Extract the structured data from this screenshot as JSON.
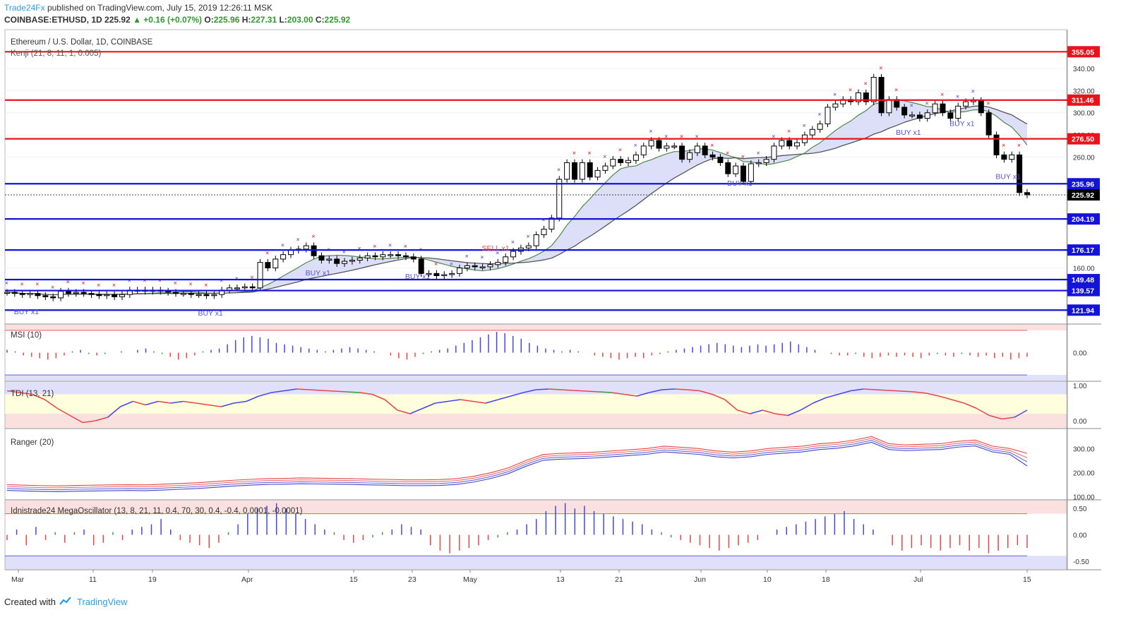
{
  "header": {
    "author": "Trade24Fx",
    "published_text": "published on TradingView.com, July 15, 2019 12:26:11 MSK",
    "symbol": "COINBASE:ETHUSD, 1D",
    "last": "225.92",
    "change": "▲ +0.16 (+0.07%)",
    "o_label": "O:",
    "o_value": "225.96",
    "h_label": "H:",
    "h_value": "227.31",
    "l_label": "L:",
    "l_value": "203.00",
    "c_label": "C:",
    "c_value": "225.92"
  },
  "footer": {
    "created_with": "Created with",
    "tradingview": "TradingView"
  },
  "colors": {
    "resistance": "#e8141c",
    "support": "#1414d8",
    "bull_ichimoku": "#6b6bd6",
    "cloud_fill": "#d4d6f5",
    "bear": "#e84545",
    "bull": "#4545e8",
    "neutral": "#3a9a3a"
  },
  "chart_data": [
    {
      "id": "main",
      "type": "candlestick",
      "title": "Ethereum / U.S. Dollar, 1D, COINBASE",
      "indicator": "Kenji (21, 8, 11, 1, 0.005)",
      "ylim": [
        110,
        375
      ],
      "y_ticks": [
        "160.00",
        "260.00",
        "280.00",
        "300.00",
        "320.00",
        "340.00"
      ],
      "x_ticks": [
        "Mar",
        "11",
        "19",
        "Apr",
        "15",
        "23",
        "May",
        "13",
        "21",
        "Jun",
        "10",
        "18",
        "Jul",
        "15"
      ],
      "horizontal_levels": [
        {
          "value": 355.05,
          "label": "355.05",
          "role": "resistance"
        },
        {
          "value": 311.46,
          "label": "311.46",
          "role": "resistance"
        },
        {
          "value": 276.5,
          "label": "276.50",
          "role": "resistance"
        },
        {
          "value": 235.96,
          "label": "235.96",
          "role": "support"
        },
        {
          "value": 204.19,
          "label": "204.19",
          "role": "support"
        },
        {
          "value": 176.17,
          "label": "176.17",
          "role": "support"
        },
        {
          "value": 149.48,
          "label": "149.48",
          "role": "support"
        },
        {
          "value": 139.57,
          "label": "139.57",
          "role": "support"
        },
        {
          "value": 121.94,
          "label": "121.94",
          "role": "support"
        }
      ],
      "last_price": {
        "value": 225.92,
        "label": "225.92"
      },
      "signals": [
        {
          "text": "BUY x1",
          "date_index": 2,
          "color": "#5555cc"
        },
        {
          "text": "BUY x1",
          "date_index": 26,
          "color": "#5555cc"
        },
        {
          "text": "BUY x1",
          "date_index": 40,
          "color": "#5555cc"
        },
        {
          "text": "BUY x1",
          "date_index": 53,
          "color": "#5555cc"
        },
        {
          "text": "SELL x1",
          "date_index": 63,
          "color": "#e84545"
        },
        {
          "text": "BUY x1",
          "date_index": 95,
          "color": "#5555cc"
        },
        {
          "text": "BUY x1",
          "date_index": 117,
          "color": "#5555cc"
        },
        {
          "text": "BUY x1",
          "date_index": 124,
          "color": "#5555cc"
        },
        {
          "text": "BUY x1",
          "date_index": 130,
          "color": "#5555cc"
        }
      ],
      "close": [
        138,
        137,
        136,
        137,
        135,
        134,
        133,
        139,
        137,
        138,
        137,
        136,
        135,
        136,
        134,
        136,
        140,
        140,
        139,
        140,
        139,
        138,
        137,
        137,
        136,
        136,
        135,
        136,
        140,
        142,
        142,
        143,
        142,
        165,
        160,
        168,
        172,
        176,
        177,
        180,
        171,
        167,
        168,
        164,
        166,
        167,
        169,
        171,
        170,
        172,
        172,
        171,
        170,
        168,
        155,
        155,
        153,
        154,
        155,
        160,
        162,
        161,
        161,
        163,
        165,
        170,
        175,
        178,
        180,
        190,
        195,
        205,
        240,
        255,
        240,
        255,
        242,
        248,
        252,
        258,
        255,
        257,
        262,
        270,
        275,
        268,
        270,
        270,
        258,
        264,
        270,
        262,
        260,
        255,
        245,
        252,
        238,
        254,
        255,
        258,
        270,
        275,
        270,
        273,
        280,
        285,
        290,
        305,
        308,
        312,
        310,
        318,
        310,
        332,
        300,
        312,
        305,
        298,
        298,
        295,
        300,
        308,
        300,
        295,
        306,
        310,
        311,
        300,
        280,
        262,
        258,
        262,
        228,
        225.92
      ]
    },
    {
      "id": "msi",
      "type": "bar",
      "title": "MSI (10)",
      "ylim": [
        -1,
        1
      ],
      "y_ticks": [
        "0.00"
      ],
      "values": [
        0.1,
        0.05,
        -0.1,
        -0.15,
        -0.2,
        -0.25,
        -0.2,
        -0.1,
        0.05,
        0.1,
        -0.05,
        -0.1,
        -0.05,
        0.0,
        0.05,
        0.0,
        0.1,
        0.15,
        0.05,
        -0.05,
        -0.15,
        -0.25,
        -0.2,
        -0.1,
        0.05,
        0.1,
        0.15,
        0.3,
        0.45,
        0.55,
        0.6,
        0.55,
        0.5,
        0.35,
        0.3,
        0.25,
        0.2,
        0.15,
        0.1,
        0.05,
        0.1,
        0.15,
        0.2,
        0.15,
        0.1,
        0.05,
        0.0,
        -0.1,
        -0.2,
        -0.25,
        -0.15,
        -0.05,
        0.05,
        0.1,
        0.15,
        0.25,
        0.35,
        0.45,
        0.55,
        0.65,
        0.75,
        0.7,
        0.6,
        0.5,
        0.35,
        0.25,
        0.15,
        0.1,
        0.05,
        0.1,
        0.05,
        0.0,
        -0.1,
        -0.15,
        -0.2,
        -0.25,
        -0.2,
        -0.15,
        -0.2,
        -0.1,
        -0.05,
        0.05,
        0.1,
        0.15,
        0.2,
        0.25,
        0.3,
        0.35,
        0.3,
        0.25,
        0.2,
        0.25,
        0.3,
        0.25,
        0.3,
        0.35,
        0.4,
        0.3,
        0.2,
        0.1,
        0.0,
        -0.05,
        -0.1,
        -0.1,
        -0.05,
        -0.15,
        -0.2,
        -0.15,
        -0.1,
        -0.15,
        -0.1,
        -0.15,
        -0.2,
        -0.1,
        -0.05,
        -0.1,
        -0.15,
        -0.05,
        -0.1,
        -0.15,
        -0.1,
        -0.2,
        -0.15,
        -0.25,
        -0.2,
        -0.15
      ],
      "zones": {
        "upper": 0.8,
        "lower": -0.8
      }
    },
    {
      "id": "tdi",
      "type": "line",
      "title": "TDI (13, 21)",
      "ylim": [
        -0.2,
        1.1
      ],
      "y_ticks": [
        "1.00",
        "0.00"
      ],
      "values": [
        0.85,
        0.8,
        0.75,
        0.6,
        0.35,
        0.15,
        -0.05,
        0.0,
        0.1,
        0.4,
        0.55,
        0.45,
        0.55,
        0.5,
        0.55,
        0.5,
        0.45,
        0.4,
        0.5,
        0.55,
        0.7,
        0.8,
        0.85,
        0.9,
        0.88,
        0.86,
        0.84,
        0.82,
        0.8,
        0.75,
        0.6,
        0.3,
        0.2,
        0.35,
        0.5,
        0.55,
        0.6,
        0.55,
        0.5,
        0.6,
        0.7,
        0.8,
        0.88,
        0.9,
        0.88,
        0.86,
        0.84,
        0.82,
        0.8,
        0.75,
        0.7,
        0.8,
        0.88,
        0.9,
        0.88,
        0.85,
        0.75,
        0.6,
        0.3,
        0.2,
        0.3,
        0.2,
        0.15,
        0.3,
        0.5,
        0.65,
        0.75,
        0.85,
        0.9,
        0.88,
        0.86,
        0.84,
        0.82,
        0.78,
        0.7,
        0.6,
        0.5,
        0.35,
        0.15,
        0.05,
        0.1,
        0.3
      ],
      "zones": {
        "upper": 0.75,
        "lower": 0.2
      }
    },
    {
      "id": "ranger",
      "type": "line",
      "title": "Ranger (20)",
      "ylim": [
        90,
        380
      ],
      "y_ticks": [
        "300.00",
        "200.00",
        "100.00"
      ],
      "series": [
        {
          "values": [
            150,
            148,
            146,
            145,
            147,
            148,
            149,
            150,
            149,
            152,
            155,
            158,
            163,
            168,
            172,
            175,
            176,
            178,
            177,
            176,
            175,
            173,
            172,
            170,
            170,
            171,
            175,
            185,
            200,
            220,
            250,
            275,
            280,
            282,
            285,
            290,
            295,
            300,
            310,
            305,
            300,
            290,
            285,
            290,
            300,
            305,
            310,
            320,
            325,
            335,
            350,
            320,
            315,
            318,
            320,
            330,
            335,
            310,
            300,
            280
          ]
        },
        {
          "values": [
            142,
            140,
            138,
            137,
            139,
            140,
            141,
            142,
            141,
            144,
            147,
            150,
            155,
            160,
            164,
            167,
            168,
            170,
            169,
            168,
            167,
            165,
            164,
            162,
            162,
            163,
            167,
            177,
            192,
            212,
            242,
            267,
            272,
            274,
            277,
            282,
            287,
            292,
            302,
            297,
            292,
            282,
            277,
            282,
            292,
            297,
            302,
            312,
            317,
            327,
            342,
            312,
            307,
            310,
            312,
            322,
            327,
            302,
            292,
            262
          ]
        },
        {
          "values": [
            134,
            132,
            130,
            129,
            131,
            132,
            133,
            134,
            133,
            136,
            139,
            142,
            147,
            152,
            156,
            159,
            160,
            162,
            161,
            160,
            159,
            157,
            156,
            154,
            154,
            155,
            159,
            169,
            184,
            204,
            234,
            259,
            264,
            266,
            269,
            274,
            279,
            284,
            294,
            289,
            284,
            274,
            269,
            274,
            284,
            289,
            294,
            304,
            309,
            319,
            334,
            304,
            299,
            302,
            304,
            314,
            319,
            294,
            284,
            245
          ]
        },
        {
          "values": [
            126,
            124,
            122,
            121,
            123,
            124,
            125,
            126,
            125,
            128,
            131,
            134,
            139,
            144,
            148,
            151,
            152,
            154,
            153,
            152,
            151,
            149,
            148,
            146,
            146,
            147,
            151,
            161,
            176,
            196,
            226,
            251,
            256,
            258,
            261,
            266,
            271,
            276,
            286,
            281,
            276,
            266,
            261,
            266,
            276,
            281,
            286,
            296,
            301,
            311,
            326,
            296,
            291,
            294,
            296,
            306,
            311,
            286,
            276,
            228
          ]
        }
      ]
    },
    {
      "id": "mega",
      "type": "bar",
      "title": "Idnistrade24 MegaOscillator (13, 8, 21, 11, 0.4, 70, 30, 0.4, -0.4, 0.0001, -0.0001)",
      "ylim": [
        -0.65,
        0.65
      ],
      "y_ticks": [
        "0.50",
        "0.00",
        "-0.50"
      ],
      "values": [
        -0.1,
        0.1,
        -0.2,
        0.15,
        -0.1,
        0.05,
        -0.15,
        0.05,
        0.1,
        -0.2,
        -0.15,
        0.05,
        -0.1,
        0.1,
        0.15,
        0.2,
        0.3,
        0.1,
        -0.1,
        -0.15,
        -0.2,
        -0.25,
        -0.15,
        0.05,
        0.2,
        0.4,
        0.5,
        0.55,
        0.6,
        0.5,
        0.4,
        0.3,
        0.2,
        0.1,
        0.05,
        -0.1,
        -0.15,
        -0.1,
        -0.05,
        0.05,
        0.1,
        0.2,
        0.15,
        0.1,
        -0.2,
        -0.3,
        -0.35,
        -0.3,
        -0.25,
        -0.2,
        -0.1,
        -0.05,
        0.05,
        0.1,
        0.2,
        0.3,
        0.45,
        0.55,
        0.6,
        0.5,
        0.55,
        0.45,
        0.4,
        0.35,
        0.3,
        0.25,
        0.2,
        0.1,
        0.05,
        -0.05,
        -0.1,
        -0.15,
        -0.2,
        -0.25,
        -0.3,
        -0.25,
        -0.2,
        -0.15,
        -0.1,
        0.0,
        0.1,
        0.15,
        0.2,
        0.25,
        0.3,
        0.35,
        0.4,
        0.45,
        0.3,
        0.2,
        0.1,
        0.0,
        -0.2,
        -0.3,
        -0.25,
        -0.2,
        -0.25,
        -0.3,
        -0.25,
        -0.2,
        -0.3,
        -0.25,
        -0.35,
        -0.3,
        -0.25,
        -0.2,
        -0.25
      ],
      "zones": {
        "upper": 0.4,
        "lower": -0.4
      }
    }
  ]
}
